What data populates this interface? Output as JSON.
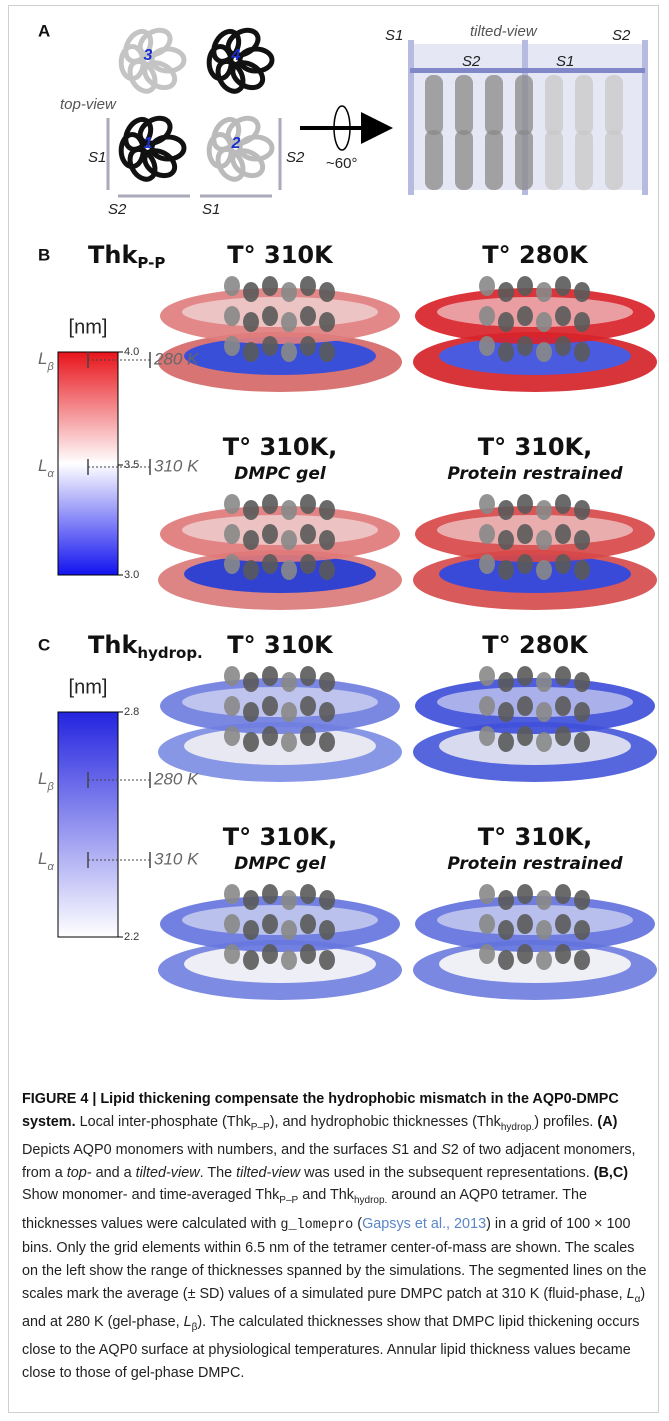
{
  "panel_a": {
    "label": "A",
    "top_view": "top-view",
    "tilted_view": "tilted-view",
    "monomers": [
      "1",
      "2",
      "3",
      "4"
    ],
    "top_surfaces": [
      "S1",
      "S2",
      "S2",
      "S1"
    ],
    "tilted_surfaces": [
      "S1",
      "S2",
      "S2",
      "S1"
    ],
    "rotation": "~60°"
  },
  "panel_b": {
    "label": "B",
    "title": {
      "main": "Thk",
      "sub": "P-P"
    },
    "unit": "[nm]",
    "ticks": [
      "4.0",
      "3.5",
      "3.0"
    ],
    "l_beta": {
      "symbol": "L",
      "sub": "β"
    },
    "l_alpha": {
      "symbol": "L",
      "sub": "α"
    },
    "marker_beta": "280 K",
    "marker_alpha": "310 K",
    "views": [
      {
        "title": "T° 310K"
      },
      {
        "title": "T° 280K"
      },
      {
        "title": "T° 310K,",
        "subtitle": "DMPC gel"
      },
      {
        "title": "T° 310K,",
        "subtitle": "Protein restrained"
      }
    ]
  },
  "panel_c": {
    "label": "C",
    "title": {
      "main": "Thk",
      "sub": "hydrop."
    },
    "unit": "[nm]",
    "ticks": [
      "2.8",
      "2.2"
    ],
    "l_beta": {
      "symbol": "L",
      "sub": "β"
    },
    "l_alpha": {
      "symbol": "L",
      "sub": "α"
    },
    "marker_beta": "280 K",
    "marker_alpha": "310 K",
    "views": [
      {
        "title": "T° 310K"
      },
      {
        "title": "T° 280K"
      },
      {
        "title": "T° 310K,",
        "subtitle": "DMPC gel"
      },
      {
        "title": "T° 310K,",
        "subtitle": "Protein restrained"
      }
    ]
  },
  "caption": {
    "runs": [
      {
        "bold": "FIGURE 4 | Lipid thickening compensate the hydrophobic mismatch in the AQP0-DMPC system."
      },
      {
        "plain": " Local inter-phosphate (Thk"
      },
      {
        "sub": "P–P"
      },
      {
        "plain": "), and hydrophobic thicknesses (Thk"
      },
      {
        "sub": "hydrop."
      },
      {
        "plain": ") profiles. "
      },
      {
        "bold": "(A)"
      },
      {
        "plain": " Depicts AQP0 monomers with numbers, and the surfaces "
      },
      {
        "italic": "S"
      },
      {
        "plain": "1 and "
      },
      {
        "italic": "S"
      },
      {
        "plain": "2 of two adjacent monomers, from a "
      },
      {
        "italic": "top-"
      },
      {
        "plain": " and a "
      },
      {
        "italic": "tilted-view"
      },
      {
        "plain": ". The "
      },
      {
        "italic": "tilted-view"
      },
      {
        "plain": " was used in the subsequent representations. "
      },
      {
        "bold": "(B,C)"
      },
      {
        "plain": " Show monomer- and time-averaged Thk"
      },
      {
        "sub": "P–P"
      },
      {
        "plain": " and Thk"
      },
      {
        "sub": "hydrop."
      },
      {
        "plain": " around an AQP0 tetramer. The thicknesses values were calculated with "
      },
      {
        "code": "g_lomepro"
      },
      {
        "plain": " ("
      },
      {
        "link": "Gapsys et al., 2013"
      },
      {
        "plain": ") in a grid of 100 × 100 bins. Only the grid elements within 6.5 nm of the tetramer center-of-mass are shown. The scales on the left show the range of thicknesses spanned by the simulations. The segmented lines on the scales mark the average (± SD) values of a simulated pure DMPC patch at 310 K (fluid-phase, "
      },
      {
        "italic": "L"
      },
      {
        "sub": "α"
      },
      {
        "plain": ") and at 280 K (gel-phase, "
      },
      {
        "italic": "L"
      },
      {
        "sub": "β"
      },
      {
        "plain": "). The calculated thicknesses show that DMPC lipid thickening occurs close to the AQP0 surface at physiological temperatures. Annular lipid thickness values became close to those of gel-phase DMPC."
      }
    ]
  }
}
